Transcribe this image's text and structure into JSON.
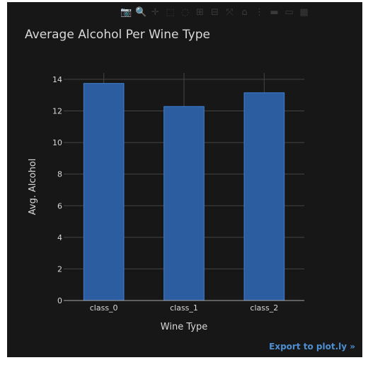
{
  "modebar": {
    "icons": [
      "camera-icon",
      "zoom-icon",
      "pan-icon",
      "box-select-icon",
      "lasso-icon",
      "zoom-in-icon",
      "zoom-out-icon",
      "autoscale-icon",
      "reset-axes-icon",
      "spike-lines-icon",
      "hover-closest-icon",
      "hover-compare-icon",
      "plotly-logo-icon"
    ],
    "glyphs": [
      "📷",
      "🔍",
      "✛",
      "⬚",
      "◌",
      "⊞",
      "⊟",
      "⤧",
      "⌂",
      "⋮",
      "▬",
      "▭",
      "▦"
    ]
  },
  "export_link": "Export to plot.ly »",
  "colors": {
    "background": "#171717",
    "bar_fill": "#2c5da0",
    "bar_stroke": "#3f7fd4",
    "grid": "#444444",
    "text": "#d9d9d9",
    "link": "#4d8fd1"
  },
  "chart_data": {
    "type": "bar",
    "title": "Average Alcohol Per Wine Type",
    "xlabel": "Wine Type",
    "ylabel": "Avg. Alcohol",
    "categories": [
      "class_0",
      "class_1",
      "class_2"
    ],
    "values": [
      13.74,
      12.28,
      13.15
    ],
    "ylim": [
      0,
      14.4
    ],
    "yticks": [
      0,
      2,
      4,
      6,
      8,
      10,
      12,
      14
    ],
    "grid": true
  }
}
